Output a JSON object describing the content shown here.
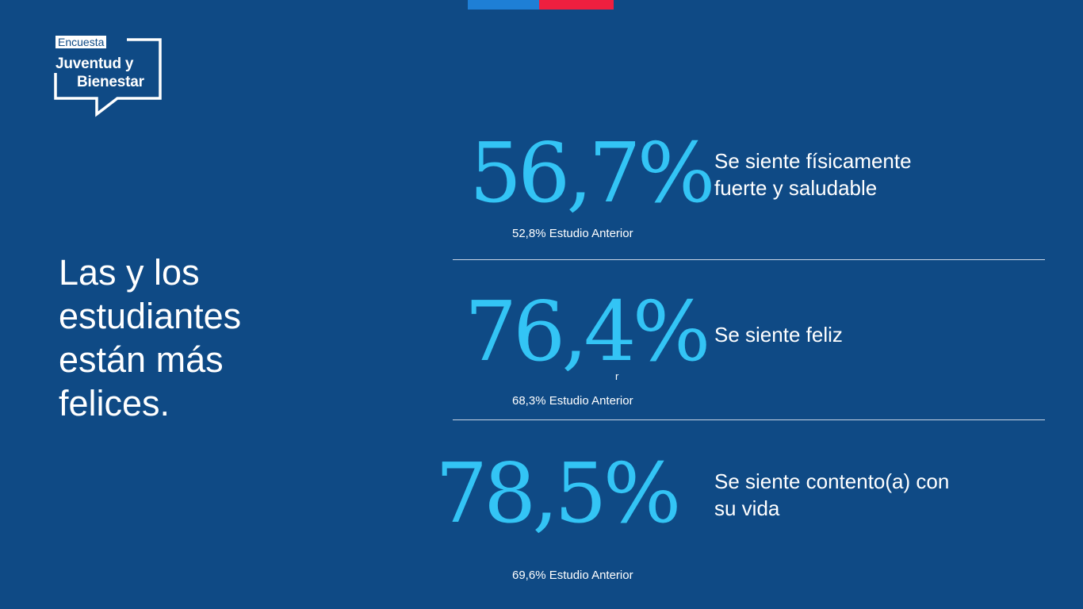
{
  "logo": {
    "tag": "Encuesta",
    "line1": "Juventud y",
    "line2": "Bienestar"
  },
  "headline": "Las y los estudiantes están más felices.",
  "stats": [
    {
      "value": "56,7%",
      "label": "Se siente físicamente fuerte y saludable",
      "previous": "52,8% Estudio Anterior"
    },
    {
      "value": "76,4%",
      "label": "Se siente feliz",
      "previous": "68,3% Estudio Anterior",
      "stray_text": "r"
    },
    {
      "value": "78,5%",
      "label": "Se siente contento(a) con su vida",
      "previous": "69,6% Estudio Anterior"
    }
  ],
  "colors": {
    "background": "#0f4a85",
    "accent": "#33c4f5",
    "flag_blue": "#1e7fd6",
    "flag_red": "#ef1f3f"
  }
}
